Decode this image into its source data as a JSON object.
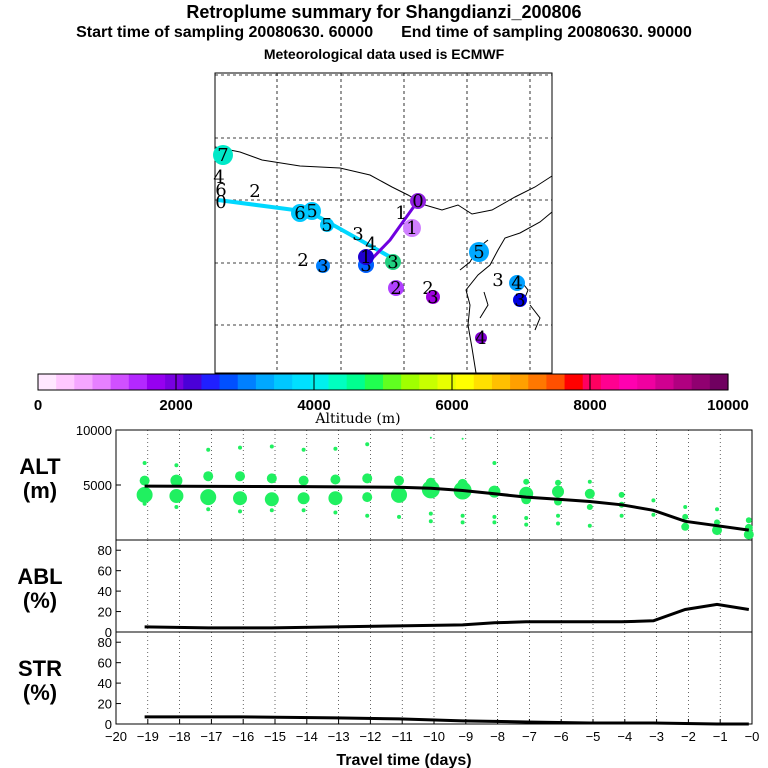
{
  "header": {
    "title": "Retroplume summary for Shangdianzi_200806",
    "start_label": "Start time of sampling 20080630. 60000",
    "end_label": "End time of sampling 20080630. 90000",
    "met_label": "Meteorological data used is ECMWF"
  },
  "colorbar": {
    "ticks": [
      "0",
      "2000",
      "4000",
      "6000",
      "8000",
      "10000"
    ],
    "label": "Altitude (m)",
    "colors": [
      "#ffe8ff",
      "#ffc8ff",
      "#f5a6ff",
      "#e680ff",
      "#d050ff",
      "#b428ff",
      "#9600f0",
      "#7800e0",
      "#4a00d8",
      "#2020ff",
      "#0050ff",
      "#0080ff",
      "#00a8ff",
      "#00c8ff",
      "#00e0ff",
      "#00f0ee",
      "#00ffc0",
      "#00ff90",
      "#20ff50",
      "#60ff20",
      "#a0ff00",
      "#c8ff00",
      "#e8ff00",
      "#ffff00",
      "#ffe000",
      "#ffc000",
      "#ffa000",
      "#ff7800",
      "#ff5000",
      "#ff0000",
      "#ff0060",
      "#ff0090",
      "#ff00b0",
      "#f000a0",
      "#d00090",
      "#b00080",
      "#900070",
      "#700060"
    ]
  },
  "map": {
    "markers": [
      {
        "n": "7",
        "c": "#00e8c8",
        "r": 10
      },
      {
        "n": "4",
        "c": "#00e0e8",
        "r": 0
      },
      {
        "n": "6",
        "c": "#00e0e8",
        "r": 0
      },
      {
        "n": "2",
        "c": "#00c8ff",
        "r": 0
      },
      {
        "n": "0",
        "c": "#00e0e8",
        "r": 0
      },
      {
        "n": "5",
        "c": "#00c8ff",
        "r": 9
      },
      {
        "n": "6",
        "c": "#00c8ff",
        "r": 9
      },
      {
        "n": "5",
        "c": "#00c8ff",
        "r": 7
      },
      {
        "n": "0",
        "c": "#9020e0",
        "r": 8
      },
      {
        "n": "1",
        "c": "#d080ff",
        "r": 9
      },
      {
        "n": "1",
        "c": "#9000e0",
        "r": 0
      },
      {
        "n": "4",
        "c": "#0080ff",
        "r": 0
      },
      {
        "n": "3",
        "c": "#00b0ff",
        "r": 0
      },
      {
        "n": "2",
        "c": "#00b0ff",
        "r": 0
      },
      {
        "n": "3",
        "c": "#0080ff",
        "r": 7
      },
      {
        "n": "3",
        "c": "#0060ff",
        "r": 8
      },
      {
        "n": "3",
        "c": "#20d080",
        "r": 8
      },
      {
        "n": "1",
        "c": "#2000d0",
        "r": 8
      },
      {
        "n": "2",
        "c": "#b040ff",
        "r": 8
      },
      {
        "n": "2",
        "c": "#b040ff",
        "r": 0
      },
      {
        "n": "3",
        "c": "#a000e0",
        "r": 7
      },
      {
        "n": "5",
        "c": "#00a8ff",
        "r": 10
      },
      {
        "n": "3",
        "c": "#00c8ff",
        "r": 0
      },
      {
        "n": "4",
        "c": "#00a0ff",
        "r": 8
      },
      {
        "n": "3",
        "c": "#0000e0",
        "r": 7
      },
      {
        "n": "4",
        "c": "#8000d0",
        "r": 6
      }
    ]
  },
  "chart_data": [
    {
      "type": "scatter",
      "panel": "ALT",
      "ylabel": "ALT\n(m)",
      "ylabel_line1": "ALT",
      "ylabel_line2": "(m)",
      "ylim": [
        0,
        10000
      ],
      "yticks": [
        "5000",
        "10000"
      ],
      "xlim": [
        -20,
        0
      ],
      "xticks": [
        "−20",
        "−19",
        "−18",
        "−17",
        "−16",
        "−15",
        "−14",
        "−13",
        "−12",
        "−11",
        "−10",
        "−9",
        "−8",
        "−7",
        "−6",
        "−5",
        "−4",
        "−3",
        "−2",
        "−1",
        "−0"
      ],
      "xlabel": "Travel time (days)",
      "point_color": "#20f060",
      "points": [
        {
          "x": -19.1,
          "y": 7000,
          "s": 2
        },
        {
          "x": -19.1,
          "y": 5400,
          "s": 5
        },
        {
          "x": -19.1,
          "y": 4100,
          "s": 8
        },
        {
          "x": -19.1,
          "y": 3300,
          "s": 2
        },
        {
          "x": -18.1,
          "y": 6800,
          "s": 2
        },
        {
          "x": -18.1,
          "y": 5400,
          "s": 6
        },
        {
          "x": -18.1,
          "y": 4000,
          "s": 7
        },
        {
          "x": -18.1,
          "y": 3000,
          "s": 2
        },
        {
          "x": -17.1,
          "y": 8200,
          "s": 2
        },
        {
          "x": -17.1,
          "y": 5800,
          "s": 5
        },
        {
          "x": -17.1,
          "y": 3900,
          "s": 8
        },
        {
          "x": -17.1,
          "y": 2800,
          "s": 2
        },
        {
          "x": -16.1,
          "y": 8400,
          "s": 2
        },
        {
          "x": -16.1,
          "y": 5800,
          "s": 5
        },
        {
          "x": -16.1,
          "y": 3800,
          "s": 7
        },
        {
          "x": -16.1,
          "y": 2600,
          "s": 2
        },
        {
          "x": -15.1,
          "y": 8500,
          "s": 2
        },
        {
          "x": -15.1,
          "y": 5600,
          "s": 5
        },
        {
          "x": -15.1,
          "y": 3700,
          "s": 7
        },
        {
          "x": -15.1,
          "y": 2700,
          "s": 2
        },
        {
          "x": -14.1,
          "y": 8200,
          "s": 2
        },
        {
          "x": -14.1,
          "y": 5400,
          "s": 5
        },
        {
          "x": -14.1,
          "y": 3800,
          "s": 6
        },
        {
          "x": -14.1,
          "y": 2700,
          "s": 2
        },
        {
          "x": -13.1,
          "y": 8300,
          "s": 2
        },
        {
          "x": -13.1,
          "y": 5500,
          "s": 5
        },
        {
          "x": -13.1,
          "y": 3800,
          "s": 7
        },
        {
          "x": -13.1,
          "y": 2500,
          "s": 2
        },
        {
          "x": -12.1,
          "y": 8700,
          "s": 2
        },
        {
          "x": -12.1,
          "y": 5600,
          "s": 5
        },
        {
          "x": -12.1,
          "y": 3900,
          "s": 5
        },
        {
          "x": -12.1,
          "y": 2200,
          "s": 2
        },
        {
          "x": -11.1,
          "y": 5400,
          "s": 5
        },
        {
          "x": -11.1,
          "y": 4100,
          "s": 8
        },
        {
          "x": -11.1,
          "y": 2100,
          "s": 2
        },
        {
          "x": -10.1,
          "y": 9300,
          "s": 1
        },
        {
          "x": -10.1,
          "y": 5200,
          "s": 5
        },
        {
          "x": -10.1,
          "y": 4600,
          "s": 9
        },
        {
          "x": -10.1,
          "y": 2400,
          "s": 2
        },
        {
          "x": -10.1,
          "y": 1700,
          "s": 2
        },
        {
          "x": -9.1,
          "y": 9200,
          "s": 1
        },
        {
          "x": -9.1,
          "y": 5100,
          "s": 5
        },
        {
          "x": -9.1,
          "y": 4500,
          "s": 9
        },
        {
          "x": -9.1,
          "y": 2200,
          "s": 2
        },
        {
          "x": -9.1,
          "y": 1600,
          "s": 2
        },
        {
          "x": -8.1,
          "y": 7000,
          "s": 2
        },
        {
          "x": -8.1,
          "y": 4400,
          "s": 6
        },
        {
          "x": -8.1,
          "y": 2100,
          "s": 2
        },
        {
          "x": -8.1,
          "y": 1600,
          "s": 2
        },
        {
          "x": -7.1,
          "y": 5300,
          "s": 3
        },
        {
          "x": -7.1,
          "y": 4200,
          "s": 7
        },
        {
          "x": -7.1,
          "y": 3700,
          "s": 5
        },
        {
          "x": -7.1,
          "y": 2000,
          "s": 2
        },
        {
          "x": -7.1,
          "y": 1400,
          "s": 2
        },
        {
          "x": -6.1,
          "y": 5200,
          "s": 3
        },
        {
          "x": -6.1,
          "y": 4400,
          "s": 6
        },
        {
          "x": -6.1,
          "y": 3500,
          "s": 4
        },
        {
          "x": -6.1,
          "y": 2200,
          "s": 2
        },
        {
          "x": -6.1,
          "y": 1500,
          "s": 2
        },
        {
          "x": -5.1,
          "y": 5300,
          "s": 2
        },
        {
          "x": -5.1,
          "y": 4200,
          "s": 5
        },
        {
          "x": -5.1,
          "y": 3000,
          "s": 3
        },
        {
          "x": -5.1,
          "y": 1300,
          "s": 2
        },
        {
          "x": -4.1,
          "y": 4100,
          "s": 3
        },
        {
          "x": -4.1,
          "y": 3200,
          "s": 3
        },
        {
          "x": -4.1,
          "y": 2200,
          "s": 2
        },
        {
          "x": -3.1,
          "y": 3600,
          "s": 2
        },
        {
          "x": -3.1,
          "y": 2300,
          "s": 2
        },
        {
          "x": -2.1,
          "y": 3000,
          "s": 2
        },
        {
          "x": -2.1,
          "y": 2100,
          "s": 3
        },
        {
          "x": -2.1,
          "y": 1200,
          "s": 4
        },
        {
          "x": -1.1,
          "y": 2800,
          "s": 2
        },
        {
          "x": -1.1,
          "y": 1600,
          "s": 3
        },
        {
          "x": -1.1,
          "y": 900,
          "s": 5
        },
        {
          "x": -0.1,
          "y": 1800,
          "s": 3
        },
        {
          "x": -0.1,
          "y": 1100,
          "s": 4
        },
        {
          "x": -0.1,
          "y": 500,
          "s": 5
        }
      ],
      "mean_line": [
        {
          "x": -19.1,
          "y": 4900
        },
        {
          "x": -14.1,
          "y": 4850
        },
        {
          "x": -11.1,
          "y": 4800
        },
        {
          "x": -10.1,
          "y": 4700
        },
        {
          "x": -9.1,
          "y": 4500
        },
        {
          "x": -8.1,
          "y": 4200
        },
        {
          "x": -7.1,
          "y": 3900
        },
        {
          "x": -6.1,
          "y": 3700
        },
        {
          "x": -5.1,
          "y": 3500
        },
        {
          "x": -4.1,
          "y": 3200
        },
        {
          "x": -3.1,
          "y": 2700
        },
        {
          "x": -2.1,
          "y": 1700
        },
        {
          "x": -1.1,
          "y": 1300
        },
        {
          "x": -0.1,
          "y": 900
        }
      ]
    },
    {
      "type": "line",
      "panel": "ABL",
      "ylabel_line1": "ABL",
      "ylabel_line2": "(%)",
      "ylim": [
        0,
        90
      ],
      "yticks": [
        "0",
        "20",
        "40",
        "60",
        "80"
      ],
      "points": [
        {
          "x": -19.1,
          "y": 5
        },
        {
          "x": -17.1,
          "y": 4
        },
        {
          "x": -15.1,
          "y": 4
        },
        {
          "x": -13.1,
          "y": 5
        },
        {
          "x": -11.1,
          "y": 6
        },
        {
          "x": -9.1,
          "y": 7
        },
        {
          "x": -8.1,
          "y": 9
        },
        {
          "x": -7.1,
          "y": 10
        },
        {
          "x": -6.1,
          "y": 10
        },
        {
          "x": -5.1,
          "y": 10
        },
        {
          "x": -4.1,
          "y": 10
        },
        {
          "x": -3.1,
          "y": 11
        },
        {
          "x": -2.1,
          "y": 22
        },
        {
          "x": -1.1,
          "y": 27
        },
        {
          "x": -0.1,
          "y": 22
        }
      ]
    },
    {
      "type": "line",
      "panel": "STR",
      "ylabel_line1": "STR",
      "ylabel_line2": "(%)",
      "ylim": [
        0,
        90
      ],
      "yticks": [
        "0",
        "20",
        "40",
        "60",
        "80"
      ],
      "points": [
        {
          "x": -19.1,
          "y": 7
        },
        {
          "x": -16.1,
          "y": 7
        },
        {
          "x": -13.1,
          "y": 6
        },
        {
          "x": -11.1,
          "y": 5
        },
        {
          "x": -9.1,
          "y": 3
        },
        {
          "x": -7.1,
          "y": 2
        },
        {
          "x": -5.1,
          "y": 1
        },
        {
          "x": -3.1,
          "y": 1
        },
        {
          "x": -1.1,
          "y": 0
        },
        {
          "x": -0.1,
          "y": 0
        }
      ]
    }
  ]
}
